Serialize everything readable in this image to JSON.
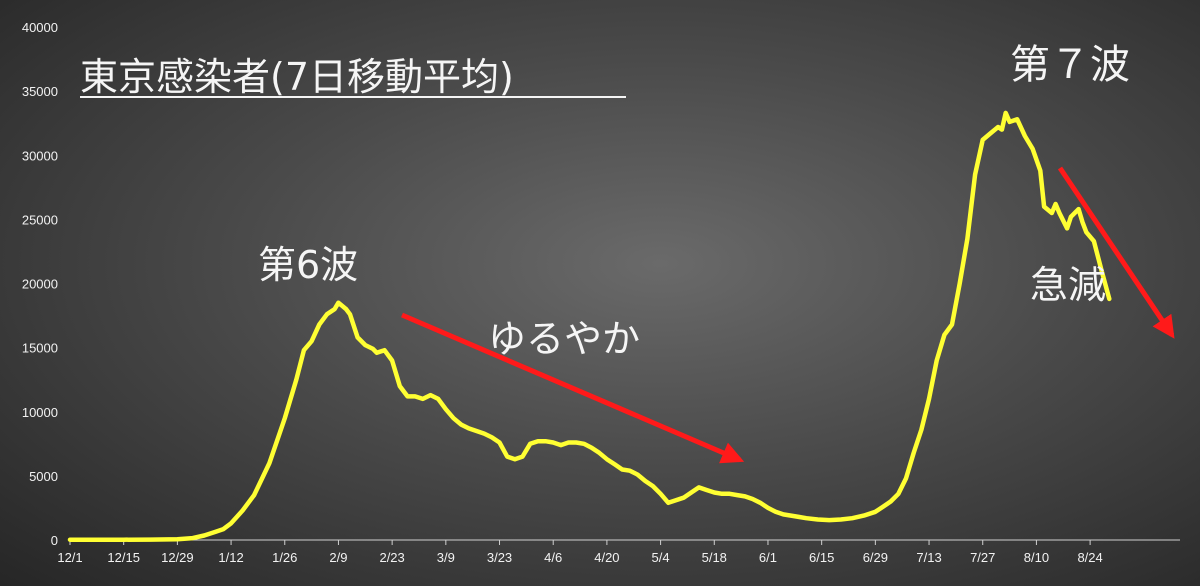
{
  "chart_data": {
    "type": "line",
    "title": "東京感染者(7日移動平均)",
    "xlabel": "",
    "ylabel": "",
    "ylim": [
      0,
      40000
    ],
    "yticks": [
      0,
      5000,
      10000,
      15000,
      20000,
      25000,
      30000,
      35000,
      40000
    ],
    "xticks": [
      "12/1",
      "12/15",
      "12/29",
      "1/12",
      "1/26",
      "2/9",
      "2/23",
      "3/9",
      "3/23",
      "4/6",
      "4/20",
      "5/4",
      "5/18",
      "6/1",
      "6/15",
      "6/29",
      "7/13",
      "7/27",
      "8/10",
      "8/24"
    ],
    "grid": false,
    "line_color": "#ffff33",
    "arrow_color": "#ff1a1a",
    "series": [
      {
        "points": [
          [
            0,
            20
          ],
          [
            14,
            20
          ],
          [
            21,
            30
          ],
          [
            28,
            60
          ],
          [
            32,
            150
          ],
          [
            35,
            350
          ],
          [
            38,
            650
          ],
          [
            40,
            850
          ],
          [
            42,
            1300
          ],
          [
            45,
            2300
          ],
          [
            48,
            3500
          ],
          [
            52,
            6000
          ],
          [
            56,
            9500
          ],
          [
            59,
            12500
          ],
          [
            61,
            14800
          ],
          [
            63,
            15500
          ],
          [
            65,
            16800
          ],
          [
            67,
            17600
          ],
          [
            69,
            18000
          ],
          [
            70,
            18500
          ],
          [
            72,
            18000
          ],
          [
            73,
            17600
          ],
          [
            75,
            15800
          ],
          [
            77,
            15200
          ],
          [
            79,
            14900
          ],
          [
            80,
            14600
          ],
          [
            82,
            14800
          ],
          [
            84,
            14000
          ],
          [
            86,
            12000
          ],
          [
            88,
            11200
          ],
          [
            90,
            11200
          ],
          [
            92,
            11000
          ],
          [
            94,
            11300
          ],
          [
            96,
            11000
          ],
          [
            98,
            10200
          ],
          [
            100,
            9500
          ],
          [
            102,
            9000
          ],
          [
            104,
            8700
          ],
          [
            106,
            8500
          ],
          [
            108,
            8300
          ],
          [
            110,
            8000
          ],
          [
            112,
            7600
          ],
          [
            114,
            6500
          ],
          [
            116,
            6300
          ],
          [
            118,
            6500
          ],
          [
            120,
            7500
          ],
          [
            122,
            7700
          ],
          [
            124,
            7700
          ],
          [
            126,
            7600
          ],
          [
            128,
            7400
          ],
          [
            130,
            7600
          ],
          [
            132,
            7600
          ],
          [
            134,
            7500
          ],
          [
            136,
            7200
          ],
          [
            138,
            6800
          ],
          [
            140,
            6300
          ],
          [
            142,
            5900
          ],
          [
            144,
            5500
          ],
          [
            146,
            5400
          ],
          [
            148,
            5100
          ],
          [
            150,
            4600
          ],
          [
            152,
            4200
          ],
          [
            154,
            3600
          ],
          [
            156,
            2900
          ],
          [
            158,
            3100
          ],
          [
            160,
            3300
          ],
          [
            162,
            3700
          ],
          [
            164,
            4100
          ],
          [
            166,
            3900
          ],
          [
            168,
            3700
          ],
          [
            170,
            3600
          ],
          [
            172,
            3600
          ],
          [
            174,
            3500
          ],
          [
            176,
            3400
          ],
          [
            178,
            3200
          ],
          [
            180,
            2900
          ],
          [
            182,
            2500
          ],
          [
            184,
            2200
          ],
          [
            186,
            2000
          ],
          [
            188,
            1900
          ],
          [
            190,
            1800
          ],
          [
            192,
            1700
          ],
          [
            195,
            1600
          ],
          [
            198,
            1550
          ],
          [
            201,
            1600
          ],
          [
            204,
            1700
          ],
          [
            207,
            1900
          ],
          [
            210,
            2200
          ],
          [
            212,
            2600
          ],
          [
            214,
            3000
          ],
          [
            216,
            3600
          ],
          [
            218,
            4800
          ],
          [
            220,
            6800
          ],
          [
            222,
            8600
          ],
          [
            224,
            11000
          ],
          [
            226,
            14000
          ],
          [
            228,
            16000
          ],
          [
            230,
            16800
          ],
          [
            232,
            20000
          ],
          [
            234,
            23500
          ],
          [
            236,
            28500
          ],
          [
            238,
            31200
          ],
          [
            240,
            31700
          ],
          [
            242,
            32200
          ],
          [
            243,
            32000
          ],
          [
            244,
            33300
          ],
          [
            245,
            32600
          ],
          [
            247,
            32800
          ],
          [
            249,
            31500
          ],
          [
            251,
            30500
          ],
          [
            253,
            28800
          ],
          [
            254,
            26000
          ],
          [
            256,
            25500
          ],
          [
            257,
            26200
          ],
          [
            258,
            25500
          ],
          [
            260,
            24300
          ],
          [
            261,
            25200
          ],
          [
            263,
            25800
          ],
          [
            264,
            24800
          ],
          [
            265,
            24000
          ],
          [
            267,
            23300
          ],
          [
            269,
            21000
          ],
          [
            271,
            18800
          ]
        ]
      }
    ],
    "annotations": {
      "wave6": "第6波",
      "wave7": "第７波",
      "gentle": "ゆるやか",
      "sharp_drop": "急減"
    }
  }
}
